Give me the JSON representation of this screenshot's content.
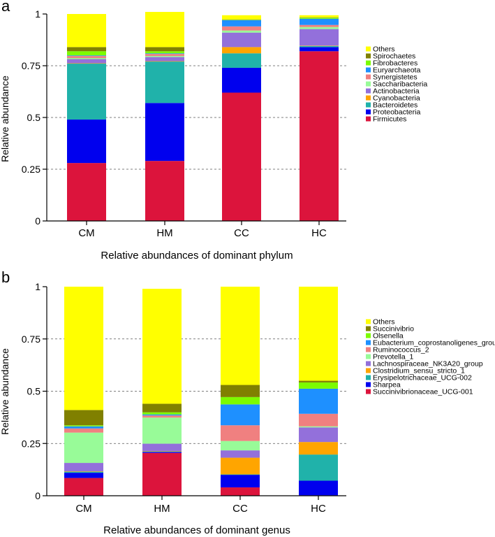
{
  "chart_data": [
    {
      "type": "bar",
      "stacked": true,
      "panel_label": "a",
      "xlabel": "Relative abundances of dominant phylum",
      "ylabel": "Relative abundance",
      "categories": [
        "CM",
        "HM",
        "CC",
        "HC"
      ],
      "ylim": [
        0,
        1
      ],
      "yticks": [
        0,
        0.25,
        0.5,
        0.75,
        1
      ],
      "ytick_labels": [
        "0",
        "0.25",
        "0.5",
        "0.75",
        "1"
      ],
      "grid": "dashed horizontal",
      "legend_position": "right",
      "series": [
        {
          "name": "Firmicutes",
          "color": "#dc143c",
          "values": [
            0.28,
            0.29,
            0.62,
            0.82
          ]
        },
        {
          "name": "Proteobacteria",
          "color": "#0000ee",
          "values": [
            0.21,
            0.28,
            0.12,
            0.02
          ]
        },
        {
          "name": "Bacteroidetes",
          "color": "#20b2aa",
          "values": [
            0.27,
            0.2,
            0.07,
            0.005
          ]
        },
        {
          "name": "Cyanobacteria",
          "color": "#ffa500",
          "values": [
            0.002,
            0.002,
            0.03,
            0.002
          ]
        },
        {
          "name": "Actinobacteria",
          "color": "#9370db",
          "values": [
            0.02,
            0.02,
            0.07,
            0.08
          ]
        },
        {
          "name": "Saccharibacteria",
          "color": "#98fb98",
          "values": [
            0.005,
            0.005,
            0.01,
            0.01
          ]
        },
        {
          "name": "Synergistetes",
          "color": "#f08080",
          "values": [
            0.01,
            0.01,
            0.02,
            0.01
          ]
        },
        {
          "name": "Euryarchaeota",
          "color": "#1e90ff",
          "values": [
            0.003,
            0.003,
            0.03,
            0.03
          ]
        },
        {
          "name": "Fibrobacteres",
          "color": "#7cfc00",
          "values": [
            0.02,
            0.01,
            0.002,
            0.005
          ]
        },
        {
          "name": "Spirochaetes",
          "color": "#808000",
          "values": [
            0.02,
            0.02,
            0.002,
            0.002
          ]
        },
        {
          "name": "Others",
          "color": "#ffff00",
          "values": [
            0.16,
            0.17,
            0.02,
            0.01
          ]
        }
      ]
    },
    {
      "type": "bar",
      "stacked": true,
      "panel_label": "b",
      "xlabel": "Relative abundances of dominant genus",
      "ylabel": "Relative abundance",
      "categories": [
        "CM",
        "HM",
        "CC",
        "HC"
      ],
      "ylim": [
        0,
        1
      ],
      "yticks": [
        0,
        0.25,
        0.5,
        0.75,
        1
      ],
      "ytick_labels": [
        "0",
        "0.25",
        "0.5",
        "0.75",
        "1"
      ],
      "grid": "dashed horizontal",
      "legend_position": "right",
      "series": [
        {
          "name": "Succinivibrionaceae_UCG-001",
          "color": "#dc143c",
          "values": [
            0.085,
            0.205,
            0.04,
            0.002
          ]
        },
        {
          "name": "Sharpea",
          "color": "#0000ee",
          "values": [
            0.025,
            0.005,
            0.06,
            0.07
          ]
        },
        {
          "name": "Erysipelotrichaceae_UCG-002",
          "color": "#20b2aa",
          "values": [
            0.005,
            0.002,
            0.002,
            0.125
          ]
        },
        {
          "name": "Clostridium_sensu_stricto_1",
          "color": "#ffa500",
          "values": [
            0.002,
            0.002,
            0.08,
            0.06
          ]
        },
        {
          "name": "Lachnospiraceae_NK3A20_group",
          "color": "#9370db",
          "values": [
            0.04,
            0.035,
            0.035,
            0.07
          ]
        },
        {
          "name": "Prevotella_1",
          "color": "#98fb98",
          "values": [
            0.145,
            0.125,
            0.045,
            0.005
          ]
        },
        {
          "name": "Ruminococcus_2",
          "color": "#f08080",
          "values": [
            0.02,
            0.01,
            0.075,
            0.06
          ]
        },
        {
          "name": "Eubacterium_coprostanoligenes_group",
          "color": "#1e90ff",
          "values": [
            0.01,
            0.005,
            0.1,
            0.12
          ]
        },
        {
          "name": "Olsenella",
          "color": "#7cfc00",
          "values": [
            0.005,
            0.01,
            0.035,
            0.03
          ]
        },
        {
          "name": "Succinivibrio",
          "color": "#808000",
          "values": [
            0.073,
            0.041,
            0.058,
            0.008
          ]
        },
        {
          "name": "Others",
          "color": "#ffff00",
          "values": [
            0.59,
            0.55,
            0.47,
            0.45
          ]
        }
      ]
    }
  ]
}
